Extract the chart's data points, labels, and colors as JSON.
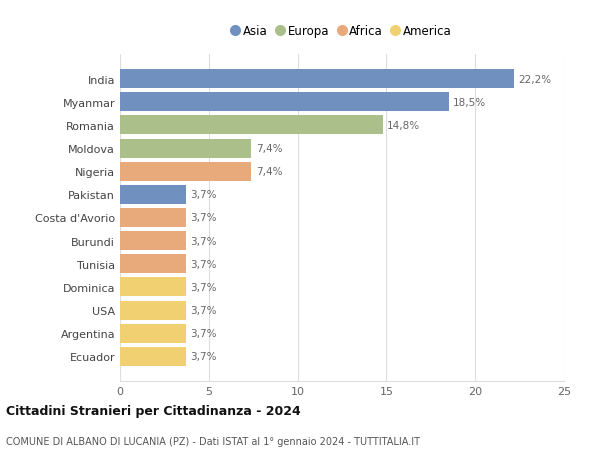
{
  "categories": [
    "India",
    "Myanmar",
    "Romania",
    "Moldova",
    "Nigeria",
    "Pakistan",
    "Costa d'Avorio",
    "Burundi",
    "Tunisia",
    "Dominica",
    "USA",
    "Argentina",
    "Ecuador"
  ],
  "values": [
    22.2,
    18.5,
    14.8,
    7.4,
    7.4,
    3.7,
    3.7,
    3.7,
    3.7,
    3.7,
    3.7,
    3.7,
    3.7
  ],
  "labels": [
    "22,2%",
    "18,5%",
    "14,8%",
    "7,4%",
    "7,4%",
    "3,7%",
    "3,7%",
    "3,7%",
    "3,7%",
    "3,7%",
    "3,7%",
    "3,7%",
    "3,7%"
  ],
  "continents": [
    "Asia",
    "Asia",
    "Europa",
    "Europa",
    "Africa",
    "Asia",
    "Africa",
    "Africa",
    "Africa",
    "America",
    "America",
    "America",
    "America"
  ],
  "colors": {
    "Asia": "#7090c0",
    "Europa": "#aabf8a",
    "Africa": "#e8aa7a",
    "America": "#f0d070"
  },
  "legend_labels": [
    "Asia",
    "Europa",
    "Africa",
    "America"
  ],
  "title": "Cittadini Stranieri per Cittadinanza - 2024",
  "subtitle": "COMUNE DI ALBANO DI LUCANIA (PZ) - Dati ISTAT al 1° gennaio 2024 - TUTTITALIA.IT",
  "xlim": [
    0,
    25
  ],
  "xticks": [
    0,
    5,
    10,
    15,
    20,
    25
  ],
  "background_color": "#ffffff",
  "grid_color": "#dddddd"
}
